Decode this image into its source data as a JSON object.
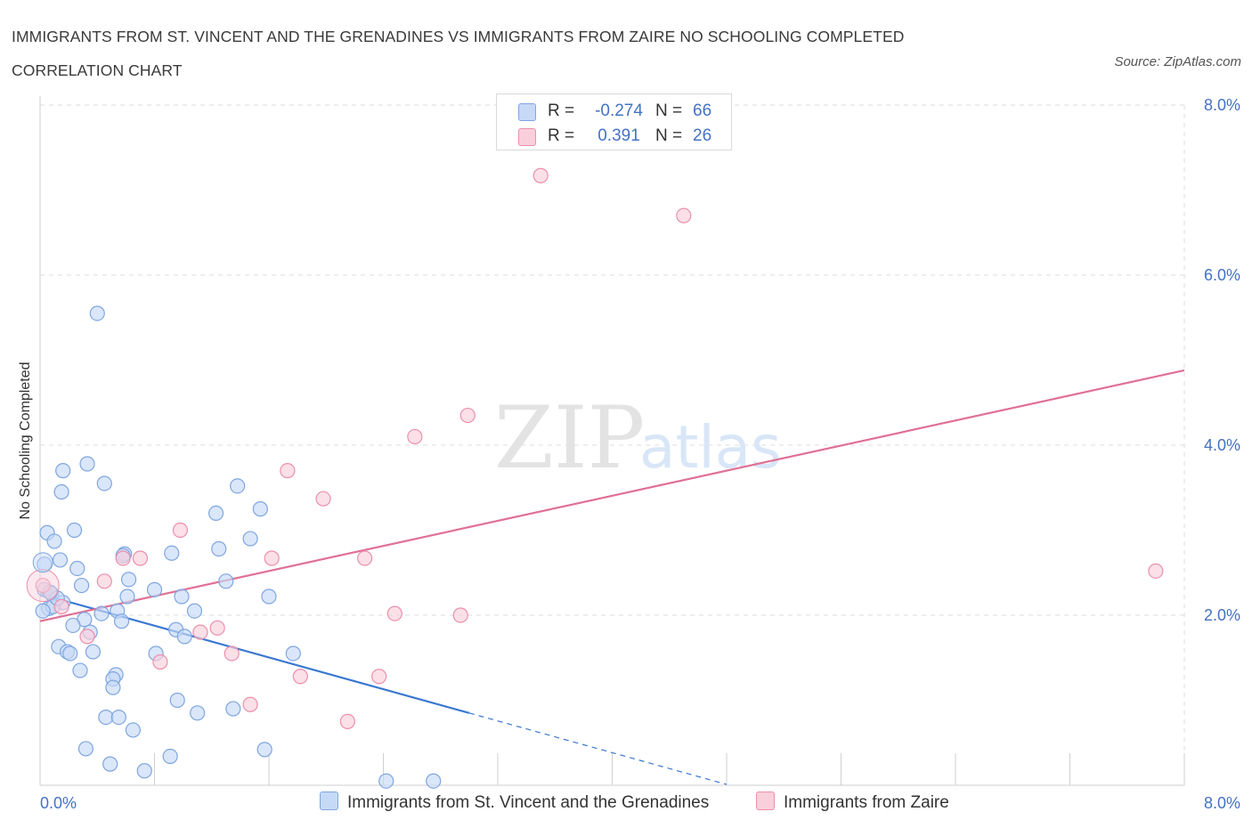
{
  "header": {
    "title_line1": "IMMIGRANTS FROM ST. VINCENT AND THE GRENADINES VS IMMIGRANTS FROM ZAIRE NO SCHOOLING COMPLETED",
    "title_line2": "CORRELATION CHART",
    "source": "Source: ZipAtlas.com"
  },
  "watermark": {
    "zip": "ZIP",
    "atlas": "atlas"
  },
  "colors": {
    "series1_fill": "#c6d9f7",
    "series1_stroke": "#7ea6e0",
    "series1_line": "#3a78d0",
    "series2_fill": "#f9cfdc",
    "series2_stroke": "#ec8fab",
    "series2_line": "#e07095",
    "tick_text": "#4472c4",
    "grid": "#dcdcdc"
  },
  "legend_stats": [
    {
      "r_label": "R =",
      "r_value": "-0.274",
      "n_label": "N =",
      "n_value": "66"
    },
    {
      "r_label": "R =",
      "r_value": "0.391",
      "n_label": "N =",
      "n_value": "26"
    }
  ],
  "chart_data": {
    "type": "scatter",
    "xlabel": "",
    "ylabel": "No Schooling Completed",
    "xlim": [
      0,
      8
    ],
    "ylim": [
      0,
      8
    ],
    "x_tick_labels": [
      "0.0%",
      "8.0%"
    ],
    "y_tick_labels": [
      "2.0%",
      "4.0%",
      "6.0%",
      "8.0%"
    ],
    "y_ticks": [
      2,
      4,
      6,
      8
    ],
    "grid": true,
    "legend_position": "top-center",
    "series": [
      {
        "name": "Immigrants from St. Vincent and the Grenadines",
        "trend": {
          "x1": 0.0,
          "y1": 2.25,
          "x2": 3.0,
          "y2": 0.85,
          "dash_to_x": 4.8
        },
        "points": [
          [
            0.4,
            5.55
          ],
          [
            0.33,
            3.78
          ],
          [
            0.16,
            3.7
          ],
          [
            0.45,
            3.55
          ],
          [
            0.15,
            3.45
          ],
          [
            1.38,
            3.52
          ],
          [
            1.54,
            3.25
          ],
          [
            1.23,
            3.2
          ],
          [
            0.24,
            3.0
          ],
          [
            0.05,
            2.97
          ],
          [
            0.1,
            2.87
          ],
          [
            1.47,
            2.9
          ],
          [
            0.59,
            2.72
          ],
          [
            1.25,
            2.78
          ],
          [
            0.92,
            2.73
          ],
          [
            0.14,
            2.65
          ],
          [
            0.03,
            2.6
          ],
          [
            0.26,
            2.55
          ],
          [
            0.62,
            2.42
          ],
          [
            1.3,
            2.4
          ],
          [
            0.29,
            2.35
          ],
          [
            0.03,
            2.3
          ],
          [
            0.8,
            2.3
          ],
          [
            0.08,
            2.25
          ],
          [
            0.61,
            2.22
          ],
          [
            0.99,
            2.22
          ],
          [
            1.6,
            2.22
          ],
          [
            0.16,
            2.15
          ],
          [
            0.06,
            2.08
          ],
          [
            0.09,
            2.1
          ],
          [
            1.08,
            2.05
          ],
          [
            0.54,
            2.05
          ],
          [
            0.43,
            2.02
          ],
          [
            0.31,
            1.95
          ],
          [
            0.57,
            1.93
          ],
          [
            0.23,
            1.88
          ],
          [
            0.35,
            1.8
          ],
          [
            0.95,
            1.83
          ],
          [
            1.01,
            1.75
          ],
          [
            0.13,
            1.63
          ],
          [
            0.19,
            1.57
          ],
          [
            0.21,
            1.55
          ],
          [
            0.37,
            1.57
          ],
          [
            0.81,
            1.55
          ],
          [
            1.77,
            1.55
          ],
          [
            0.28,
            1.35
          ],
          [
            0.53,
            1.3
          ],
          [
            0.51,
            1.25
          ],
          [
            0.51,
            1.15
          ],
          [
            0.96,
            1.0
          ],
          [
            1.35,
            0.9
          ],
          [
            1.1,
            0.85
          ],
          [
            0.46,
            0.8
          ],
          [
            0.55,
            0.8
          ],
          [
            0.65,
            0.65
          ],
          [
            0.32,
            0.43
          ],
          [
            1.57,
            0.42
          ],
          [
            0.91,
            0.34
          ],
          [
            0.49,
            0.25
          ],
          [
            0.73,
            0.17
          ],
          [
            2.42,
            0.05
          ],
          [
            2.75,
            0.05
          ],
          [
            0.02,
            2.05
          ],
          [
            0.12,
            2.2
          ],
          [
            0.07,
            2.27
          ],
          [
            0.58,
            2.7
          ]
        ]
      },
      {
        "name": "Immigrants from Zaire",
        "trend": {
          "x1": 0.0,
          "y1": 1.93,
          "x2": 8.0,
          "y2": 4.88
        },
        "points": [
          [
            3.5,
            7.17
          ],
          [
            4.5,
            6.7
          ],
          [
            2.99,
            4.35
          ],
          [
            2.62,
            4.1
          ],
          [
            1.73,
            3.7
          ],
          [
            1.98,
            3.37
          ],
          [
            0.98,
            3.0
          ],
          [
            0.58,
            2.67
          ],
          [
            0.7,
            2.67
          ],
          [
            1.62,
            2.67
          ],
          [
            2.27,
            2.67
          ],
          [
            7.8,
            2.52
          ],
          [
            0.45,
            2.4
          ],
          [
            0.02,
            2.35
          ],
          [
            2.48,
            2.02
          ],
          [
            2.94,
            2.0
          ],
          [
            1.24,
            1.85
          ],
          [
            1.12,
            1.8
          ],
          [
            0.33,
            1.75
          ],
          [
            1.34,
            1.55
          ],
          [
            0.84,
            1.45
          ],
          [
            1.82,
            1.28
          ],
          [
            2.37,
            1.28
          ],
          [
            1.47,
            0.95
          ],
          [
            2.15,
            0.75
          ],
          [
            0.15,
            2.1
          ]
        ]
      }
    ]
  }
}
